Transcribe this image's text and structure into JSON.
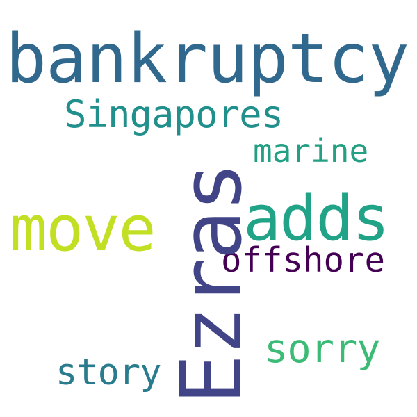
{
  "words": [
    {
      "id": "bankruptcy",
      "text": "bankruptcy",
      "color": "#31688e"
    },
    {
      "id": "singapores",
      "text": "Singapores",
      "color": "#21908c"
    },
    {
      "id": "marine",
      "text": "marine",
      "color": "#23a083"
    },
    {
      "id": "move",
      "text": "move",
      "color": "#c2df23"
    },
    {
      "id": "adds",
      "text": "adds",
      "color": "#20a386"
    },
    {
      "id": "offshore",
      "text": "offshore",
      "color": "#440154"
    },
    {
      "id": "sorry",
      "text": "sorry",
      "color": "#3bbb75"
    },
    {
      "id": "story",
      "text": "story",
      "color": "#297b8e"
    },
    {
      "id": "ezras",
      "text": "Ezras",
      "color": "#414487"
    }
  ]
}
